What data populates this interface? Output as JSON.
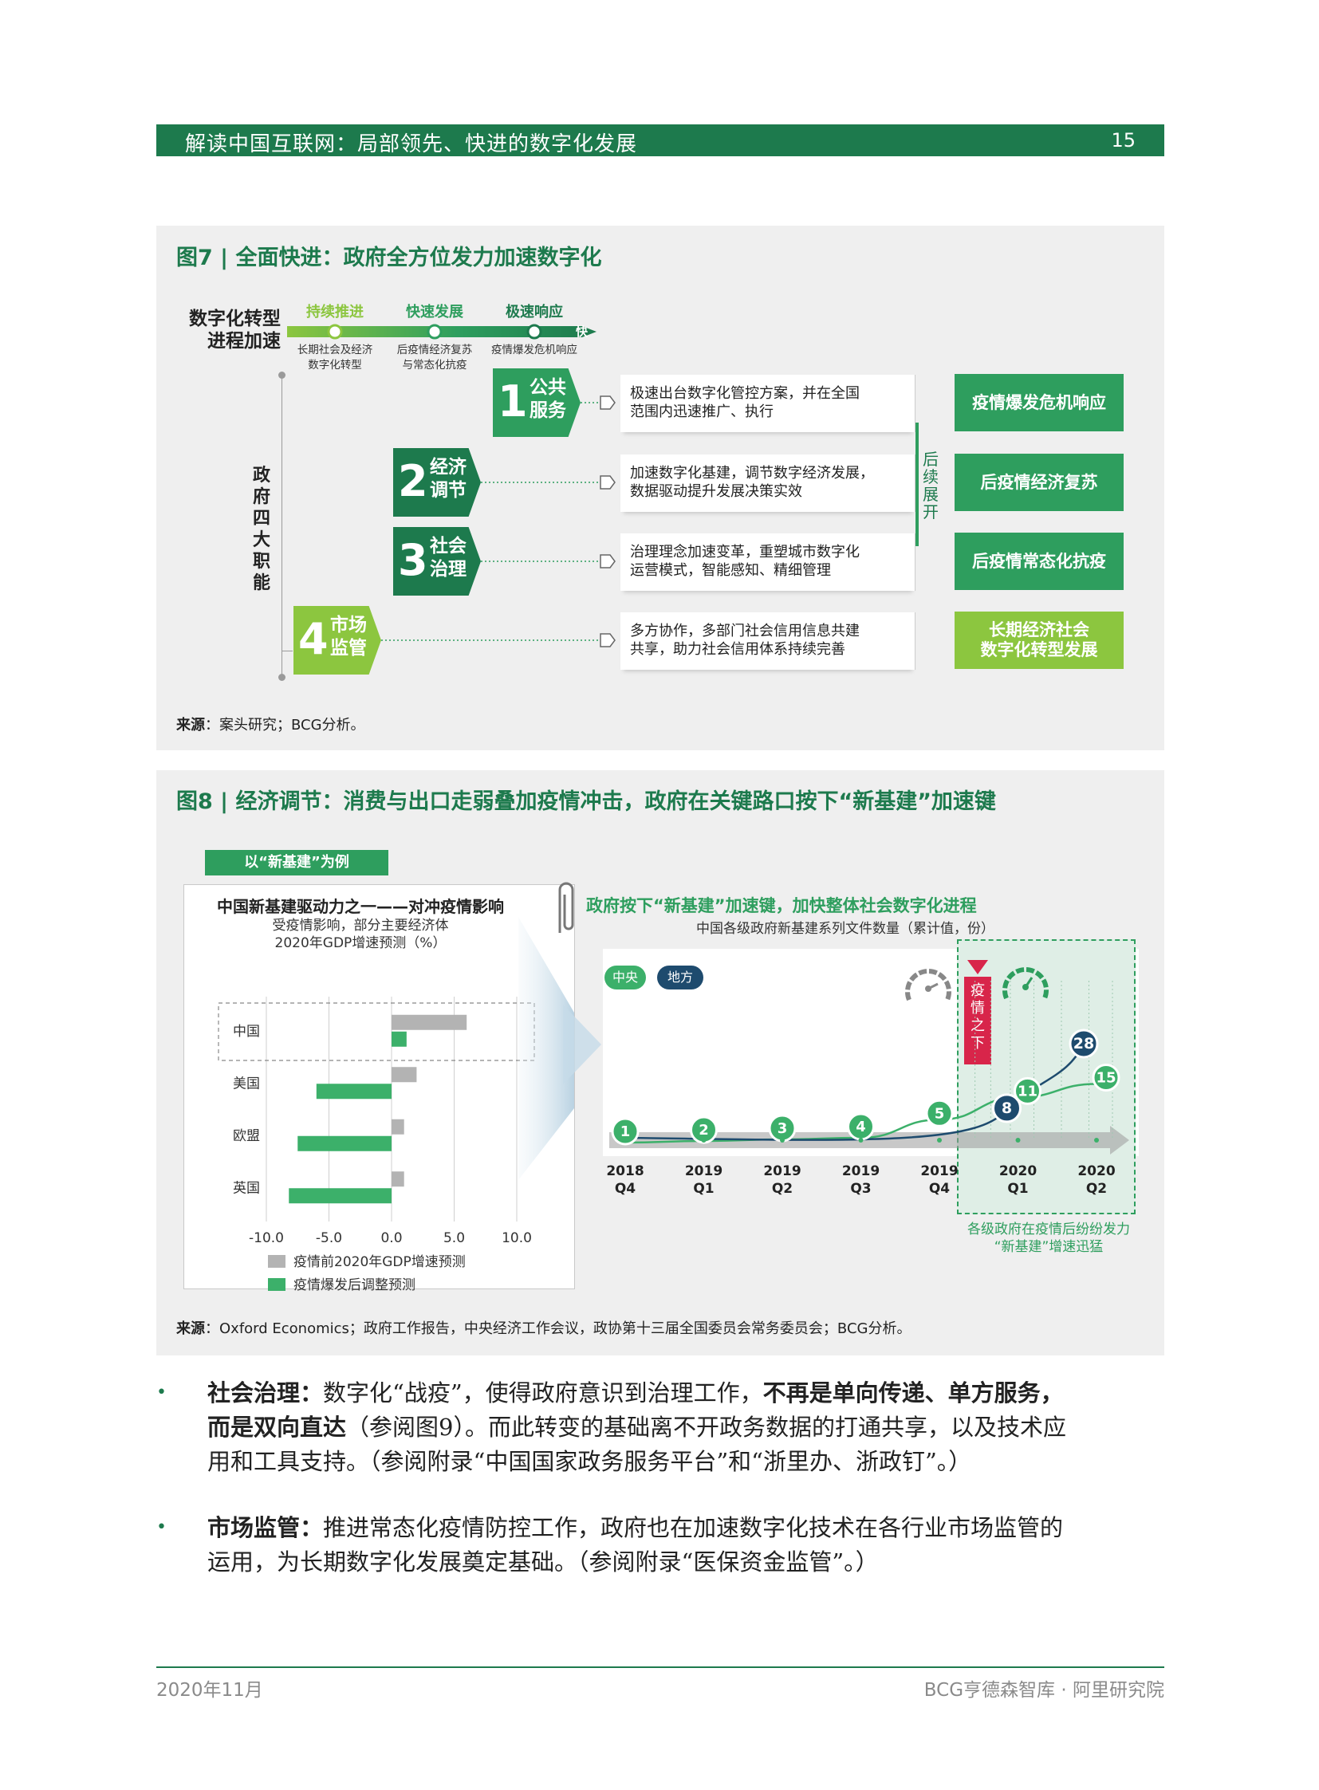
{
  "header": {
    "title": "解读中国互联网：局部领先、快进的数字化发展",
    "page": "15"
  },
  "fig7": {
    "title": "图7 | 全面快进：政府全方位发力加速数字化",
    "left_label": [
      "数字化转型",
      "进程加速"
    ],
    "stages": [
      {
        "label": "持续推进",
        "color": "#8cc63f",
        "sub": [
          "长期社会及经济",
          "数字化转型"
        ]
      },
      {
        "label": "快速发展",
        "color": "#2e9e5e",
        "sub": [
          "后疫情经济复苏",
          "与常态化抗疫"
        ]
      },
      {
        "label": "极速响应",
        "color": "#1d7a4d",
        "sub": [
          "疫情爆发危机响应"
        ]
      }
    ],
    "arrow_tip": "快",
    "vertical_label": "政府四大职能",
    "functions": [
      {
        "num": "1",
        "label": "公共服务",
        "color": "#2e9e5e",
        "desc": [
          "极速出台数字化管控方案，并在全国",
          "范围内迅速推广、执行"
        ]
      },
      {
        "num": "2",
        "label": "经济调节",
        "color": "#1d7a4d",
        "desc": [
          "加速数字化基建，调节数字经济发展，",
          "数据驱动提升发展决策实效"
        ]
      },
      {
        "num": "3",
        "label": "社会治理",
        "color": "#1d7a4d",
        "desc": [
          "治理理念加速变革，重塑城市数字化",
          "运营模式，智能感知、精细管理"
        ]
      },
      {
        "num": "4",
        "label": "市场监管",
        "color": "#8cc63f",
        "desc": [
          "多方协作，多部门社会信用信息共建",
          "共享，助力社会信用体系持续完善"
        ]
      }
    ],
    "follow_label": "后续展开",
    "responses": [
      {
        "label": [
          "疫情爆发危机响应"
        ],
        "color": "#2e9e5e"
      },
      {
        "label": [
          "后疫情经济复苏"
        ],
        "color": "#2e9e5e"
      },
      {
        "label": [
          "后疫情常态化抗疫"
        ],
        "color": "#2e9e5e"
      },
      {
        "label": [
          "长期经济社会",
          "数字化转型发展"
        ],
        "color": "#8cc63f"
      }
    ],
    "source_label": "来源",
    "source": "：案头研究；BCG分析。"
  },
  "fig8": {
    "title": "图8 | 经济调节：消费与出口走弱叠加疫情冲击，政府在关键路口按下“新基建”加速键",
    "tag": "以“新基建”为例",
    "source_label": "来源",
    "source": "：Oxford Economics；政府工作报告，中央经济工作会议，政协第十三届全国委员会常务委员会；BCG分析。",
    "left_chart_title": "中国新基建驱动力之一——对冲疫情影响",
    "right_chart_title": "政府按下“新基建”加速键，加快整体社会数字化进程",
    "right_chart_subtitle": "中国各级政府新基建系列文件数量（累计值，份）",
    "legend_central": "中央",
    "legend_local": "地方",
    "pandemic_label": "疫情之下",
    "bottom_note": [
      "各级政府在疫情后纷纷发力",
      "“新基建”增速迅猛"
    ]
  },
  "chart_data": [
    {
      "type": "bar",
      "title": "受疫情影响，部分主要经济体\n2020年GDP增速预测（%）",
      "title_lines": [
        "受疫情影响，部分主要经济体",
        "2020年GDP增速预测（%）"
      ],
      "categories": [
        "中国",
        "美国",
        "欧盟",
        "英国"
      ],
      "series": [
        {
          "name": "疫情前2020年GDP增速预测",
          "color": "#b3b3b3",
          "values": [
            6.0,
            2.0,
            1.0,
            1.0
          ]
        },
        {
          "name": "疫情爆发后调整预测",
          "color": "#3cb06a",
          "values": [
            1.2,
            -6.0,
            -7.5,
            -8.2
          ]
        }
      ],
      "xlim": [
        -10,
        10
      ],
      "xticks": [
        "-10.0",
        "-5.0",
        "0.0",
        "5.0",
        "10.0"
      ],
      "orientation": "horizontal",
      "grid": true
    },
    {
      "type": "line",
      "categories": [
        [
          "2018",
          "Q4"
        ],
        [
          "2019",
          "Q1"
        ],
        [
          "2019",
          "Q2"
        ],
        [
          "2019",
          "Q3"
        ],
        [
          "2019",
          "Q4"
        ],
        [
          "2020",
          "Q1"
        ],
        [
          "2020",
          "Q2"
        ]
      ],
      "series": [
        {
          "name": "中央",
          "color": "#3cb06a",
          "points": [
            [
              0,
              1
            ],
            [
              1,
              2
            ],
            [
              2,
              3
            ],
            [
              3,
              4
            ],
            [
              4,
              5
            ],
            [
              5,
              11
            ],
            [
              6,
              15
            ]
          ]
        },
        {
          "name": "地方",
          "color": "#1e4b6e",
          "points": [
            [
              5,
              8
            ],
            [
              6,
              28
            ]
          ]
        }
      ]
    }
  ],
  "bullets": [
    {
      "parts": [
        {
          "b": true,
          "t": "社会治理："
        },
        {
          "b": false,
          "t": "数字化“战疫”，使得政府意识到治理工作，"
        },
        {
          "b": true,
          "t": "不再是单向传递、单方服务，"
        }
      ],
      "line2": [
        {
          "b": true,
          "t": "而是双向直达"
        },
        {
          "b": false,
          "t": "（参阅图9）。而此转变的基础离不开政务数据的打通共享，以及技术应"
        }
      ],
      "line3": [
        {
          "b": false,
          "t": "用和工具支持。（参阅附录“中国国家政务服务平台”和“浙里办、浙政钉”。）"
        }
      ]
    },
    {
      "parts": [
        {
          "b": true,
          "t": "市场监管："
        },
        {
          "b": false,
          "t": "推进常态化疫情防控工作，政府也在加速数字化技术在各行业市场监管的"
        }
      ],
      "line2": [
        {
          "b": false,
          "t": "运用，为长期数字化发展奠定基础。（参阅附录“医保资金监管”。）"
        }
      ],
      "line3": []
    }
  ],
  "footer": {
    "date": "2020年11月",
    "org": "BCG亨德森智库 · 阿里研究院"
  }
}
